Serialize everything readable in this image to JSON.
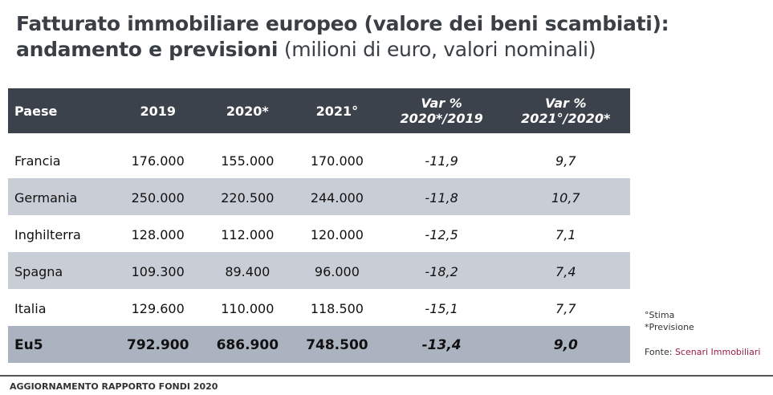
{
  "title": {
    "line1": "Fatturato immobiliare europeo (valore dei beni scambiati):",
    "line2_bold": "andamento e previsioni",
    "line2_light": "(milioni di euro, valori nominali)"
  },
  "table": {
    "headers": [
      "Paese",
      "2019",
      "2020*",
      "2021°",
      "Var % 2020*/2019",
      "Var % 2021°/2020*"
    ],
    "header_var": [
      {
        "top": "Var %",
        "bottom": "2020*/2019"
      },
      {
        "top": "Var %",
        "bottom": "2021°/2020*"
      }
    ],
    "rows": [
      [
        "Francia",
        "176.000",
        "155.000",
        "170.000",
        "-11,9",
        "9,7"
      ],
      [
        "Germania",
        "250.000",
        "220.500",
        "244.000",
        "-11,8",
        "10,7"
      ],
      [
        "Inghilterra",
        "128.000",
        "112.000",
        "120.000",
        "-12,5",
        "7,1"
      ],
      [
        "Spagna",
        "109.300",
        "89.400",
        "96.000",
        "-18,2",
        "7,4"
      ],
      [
        "Italia",
        "129.600",
        "110.000",
        "118.500",
        "-15,1",
        "7,7"
      ]
    ],
    "total": [
      "Eu5",
      "792.900",
      "686.900",
      "748.500",
      "-13,4",
      "9,0"
    ]
  },
  "notes": {
    "stima": "°Stima",
    "previsione": "*Previsione",
    "source_label": "Fonte:",
    "source_name": "Scenari Immobiliari"
  },
  "footer": "AGGIORNAMENTO RAPPORTO FONDI 2020",
  "colors": {
    "header_bg": "#3c424b",
    "row_alt": "#c9ced6",
    "total_bg": "#aab3bf",
    "source": "#9b1b4a"
  }
}
